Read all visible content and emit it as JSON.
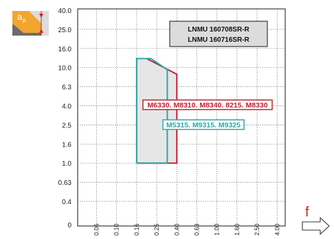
{
  "chart_data": {
    "type": "area",
    "x_axis": {
      "label": "f",
      "scale": "log",
      "ticks": [
        "0.06",
        "0.10",
        "0.16",
        "0.25",
        "0.40",
        "0.63",
        "1.00",
        "1.60",
        "2.50",
        "4.00"
      ]
    },
    "y_axis": {
      "label": "ap",
      "scale": "log",
      "ticks": [
        "40.0",
        "25.0",
        "16.0",
        "10.0",
        "6.3",
        "4.0",
        "2.5",
        "1.6",
        "1.0",
        "0.63",
        "0.4",
        "0"
      ]
    },
    "grid": true,
    "title_lines": [
      "LNMU 160708SR-R",
      "LNMU 160716SR-R"
    ],
    "series": [
      {
        "name": "M6330. M8310. M8340. 8215. M8330",
        "color": "#c0202f",
        "outline": [
          {
            "f": 0.16,
            "ap": 1.0
          },
          {
            "f": 0.16,
            "ap": 12.5
          },
          {
            "f": 0.2,
            "ap": 12.5
          },
          {
            "f": 0.4,
            "ap": 8.5
          },
          {
            "f": 0.4,
            "ap": 1.0
          }
        ]
      },
      {
        "name": "M5315. M9315. M9325",
        "color": "#2aa8a8",
        "outline": [
          {
            "f": 0.16,
            "ap": 1.0
          },
          {
            "f": 0.16,
            "ap": 12.5
          },
          {
            "f": 0.22,
            "ap": 12.5
          },
          {
            "f": 0.32,
            "ap": 9.5
          },
          {
            "f": 0.32,
            "ap": 1.0
          }
        ]
      }
    ]
  },
  "colors": {
    "fill": "#e6e6e6",
    "badge_orange": "#f2a531",
    "badge_gray": "#dcdcdc",
    "arrow_red": "#d7201f"
  },
  "icons": {
    "ap_badge": "insert-depth-of-cut-icon",
    "f_arrow": "right-arrow-icon"
  }
}
